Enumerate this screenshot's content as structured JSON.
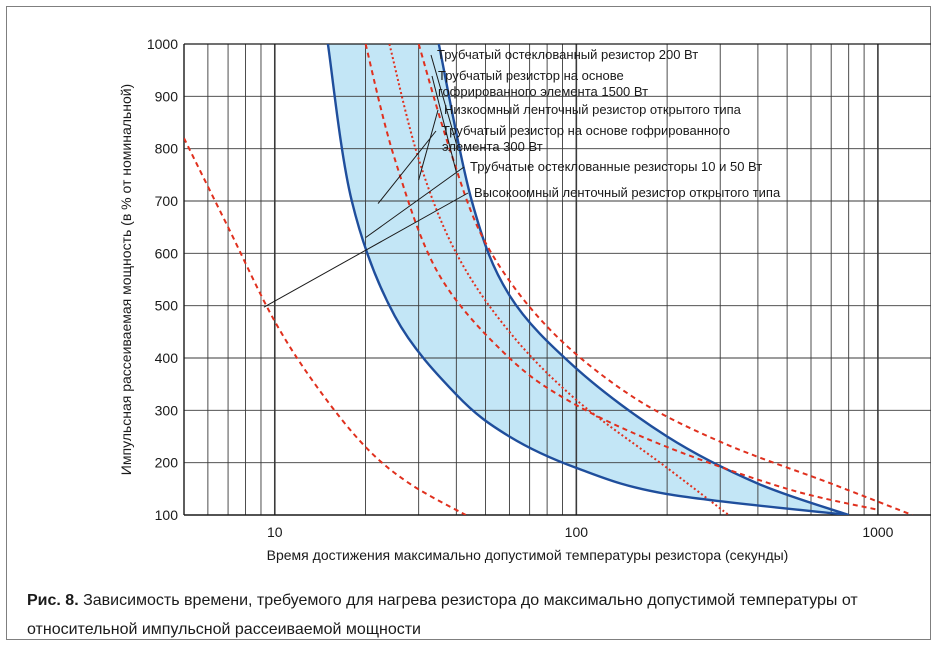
{
  "caption": {
    "figure_label": "Рис. 8.",
    "text": "Зависимость времени, требуемого для нагрева резистора до максимально допустимой температуры от относительной импульсной рассеиваемой мощности"
  },
  "colors": {
    "band_fill": "#c3e6f6",
    "band_edge": "#1f4e9c",
    "red": "#e0301e",
    "grid": "#3a3a3a"
  },
  "chart_data": {
    "type": "line",
    "xscale": "log",
    "xlim": [
      5,
      1500
    ],
    "ylim": [
      100,
      1000
    ],
    "xlabel": "Время достижения максимально допустимой температуры резистора (секунды)",
    "ylabel": "Импульсная рассеиваемая мощность (в % от номинальной)",
    "x_ticks": [
      10,
      100,
      1000
    ],
    "x_tick_labels": [
      "10",
      "100",
      "1000"
    ],
    "y_ticks": [
      100,
      200,
      300,
      400,
      500,
      600,
      700,
      800,
      900,
      1000
    ],
    "y_tick_labels": [
      "100",
      "200",
      "300",
      "400",
      "500",
      "600",
      "700",
      "800",
      "900",
      "1000"
    ],
    "grid": true,
    "band": {
      "upper": [
        [
          35,
          1000
        ],
        [
          45,
          700
        ],
        [
          60,
          520
        ],
        [
          100,
          380
        ],
        [
          200,
          250
        ],
        [
          400,
          160
        ],
        [
          800,
          100
        ]
      ],
      "lower": [
        [
          15,
          1000
        ],
        [
          18,
          700
        ],
        [
          25,
          480
        ],
        [
          40,
          330
        ],
        [
          60,
          250
        ],
        [
          100,
          190
        ],
        [
          200,
          140
        ],
        [
          800,
          100
        ]
      ]
    },
    "series": [
      {
        "name": "Трубчатый остеклованный резистор 200 Вт",
        "style": "solid",
        "points": [
          [
            35,
            1000
          ],
          [
            45,
            700
          ],
          [
            60,
            520
          ],
          [
            100,
            380
          ],
          [
            200,
            250
          ],
          [
            400,
            160
          ],
          [
            800,
            100
          ]
        ]
      },
      {
        "name": "Трубчатый резистор на основе гофрированного элемента 1500 Вт",
        "style": "dashed",
        "points": [
          [
            30,
            1000
          ],
          [
            38,
            800
          ],
          [
            50,
            620
          ],
          [
            80,
            460
          ],
          [
            150,
            330
          ],
          [
            300,
            240
          ],
          [
            700,
            160
          ],
          [
            1300,
            100
          ]
        ]
      },
      {
        "name": "Низкоомный ленточный резистор открытого типа",
        "style": "dotted",
        "points": [
          [
            24,
            1000
          ],
          [
            30,
            780
          ],
          [
            40,
            600
          ],
          [
            60,
            450
          ],
          [
            100,
            320
          ],
          [
            200,
            190
          ],
          [
            320,
            100
          ]
        ]
      },
      {
        "name": "Трубчатый резистор на основе гофрированного элемента 300 Вт",
        "style": "dashed",
        "points": [
          [
            20,
            1000
          ],
          [
            25,
            780
          ],
          [
            35,
            560
          ],
          [
            60,
            400
          ],
          [
            100,
            310
          ],
          [
            200,
            230
          ],
          [
            500,
            150
          ],
          [
            1000,
            110
          ]
        ]
      },
      {
        "name": "Трубчатые остеклованные резисторы 10 и 50 Вт",
        "style": "solid",
        "points": [
          [
            15,
            1000
          ],
          [
            18,
            700
          ],
          [
            25,
            480
          ],
          [
            40,
            330
          ],
          [
            60,
            250
          ],
          [
            100,
            190
          ],
          [
            200,
            140
          ],
          [
            800,
            100
          ]
        ]
      },
      {
        "name": "Высокоомный ленточный резистор открытого типа",
        "style": "dashed",
        "points": [
          [
            5,
            820
          ],
          [
            7,
            650
          ],
          [
            10,
            470
          ],
          [
            14,
            340
          ],
          [
            20,
            230
          ],
          [
            28,
            160
          ],
          [
            43,
            100
          ]
        ]
      }
    ],
    "annotations": [
      {
        "lines": [
          "Трубчатый остеклованный резистор 200 Вт"
        ],
        "target": [
          40,
          810
        ]
      },
      {
        "lines": [
          "Трубчатый резистор на основе",
          "гофрированного элемента 1500 Вт"
        ],
        "target": [
          40,
          755
        ]
      },
      {
        "lines": [
          "Низкоомный ленточный резистор открытого типа"
        ],
        "target": [
          30,
          740
        ]
      },
      {
        "lines": [
          "Трубчатый резистор на основе гофрированного",
          "элемента 300 Вт"
        ],
        "target": [
          22,
          695
        ]
      },
      {
        "lines": [
          "Трубчатые остеклованные резисторы 10 и 50 Вт"
        ],
        "target": [
          20,
          630
        ]
      },
      {
        "lines": [
          "Высокоомный ленточный резистор открытого типа"
        ],
        "target": [
          9.2,
          497
        ]
      }
    ]
  }
}
